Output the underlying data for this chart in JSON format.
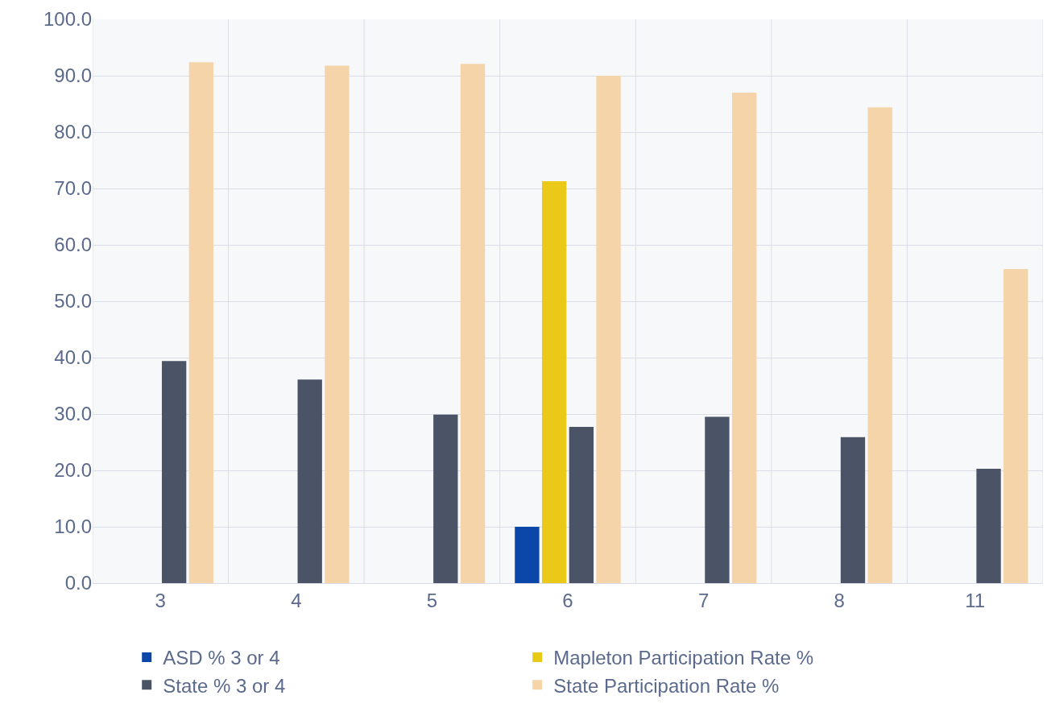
{
  "chart_data": {
    "type": "bar",
    "categories": [
      "3",
      "4",
      "5",
      "6",
      "7",
      "8",
      "11"
    ],
    "series": [
      {
        "name": "ASD % 3 or 4",
        "color": "#0a47a9",
        "values": [
          null,
          null,
          null,
          10.0,
          null,
          null,
          null
        ]
      },
      {
        "name": "Mapleton Participation Rate %",
        "color": "#ebc918",
        "values": [
          null,
          null,
          null,
          71.3,
          null,
          null,
          null
        ]
      },
      {
        "name": "State % 3 or 4",
        "color": "#4b5366",
        "values": [
          39.4,
          36.1,
          29.9,
          27.7,
          29.5,
          25.9,
          20.3
        ]
      },
      {
        "name": "State Participation Rate %",
        "color": "#f4d4a8",
        "values": [
          92.4,
          91.8,
          92.1,
          90.0,
          87.0,
          84.4,
          55.7
        ]
      }
    ],
    "ylim": [
      0,
      100
    ],
    "yticks": [
      {
        "value": 0,
        "label": "0.0"
      },
      {
        "value": 10,
        "label": "10.0"
      },
      {
        "value": 20,
        "label": "20.0"
      },
      {
        "value": 30,
        "label": "30.0"
      },
      {
        "value": 40,
        "label": "40.0"
      },
      {
        "value": 50,
        "label": "50.0"
      },
      {
        "value": 60,
        "label": "60.0"
      },
      {
        "value": 70,
        "label": "70.0"
      },
      {
        "value": 80,
        "label": "80.0"
      },
      {
        "value": 90,
        "label": "90.0"
      },
      {
        "value": 100,
        "label": "100.0"
      }
    ],
    "grid": true,
    "legend": "bottom"
  }
}
